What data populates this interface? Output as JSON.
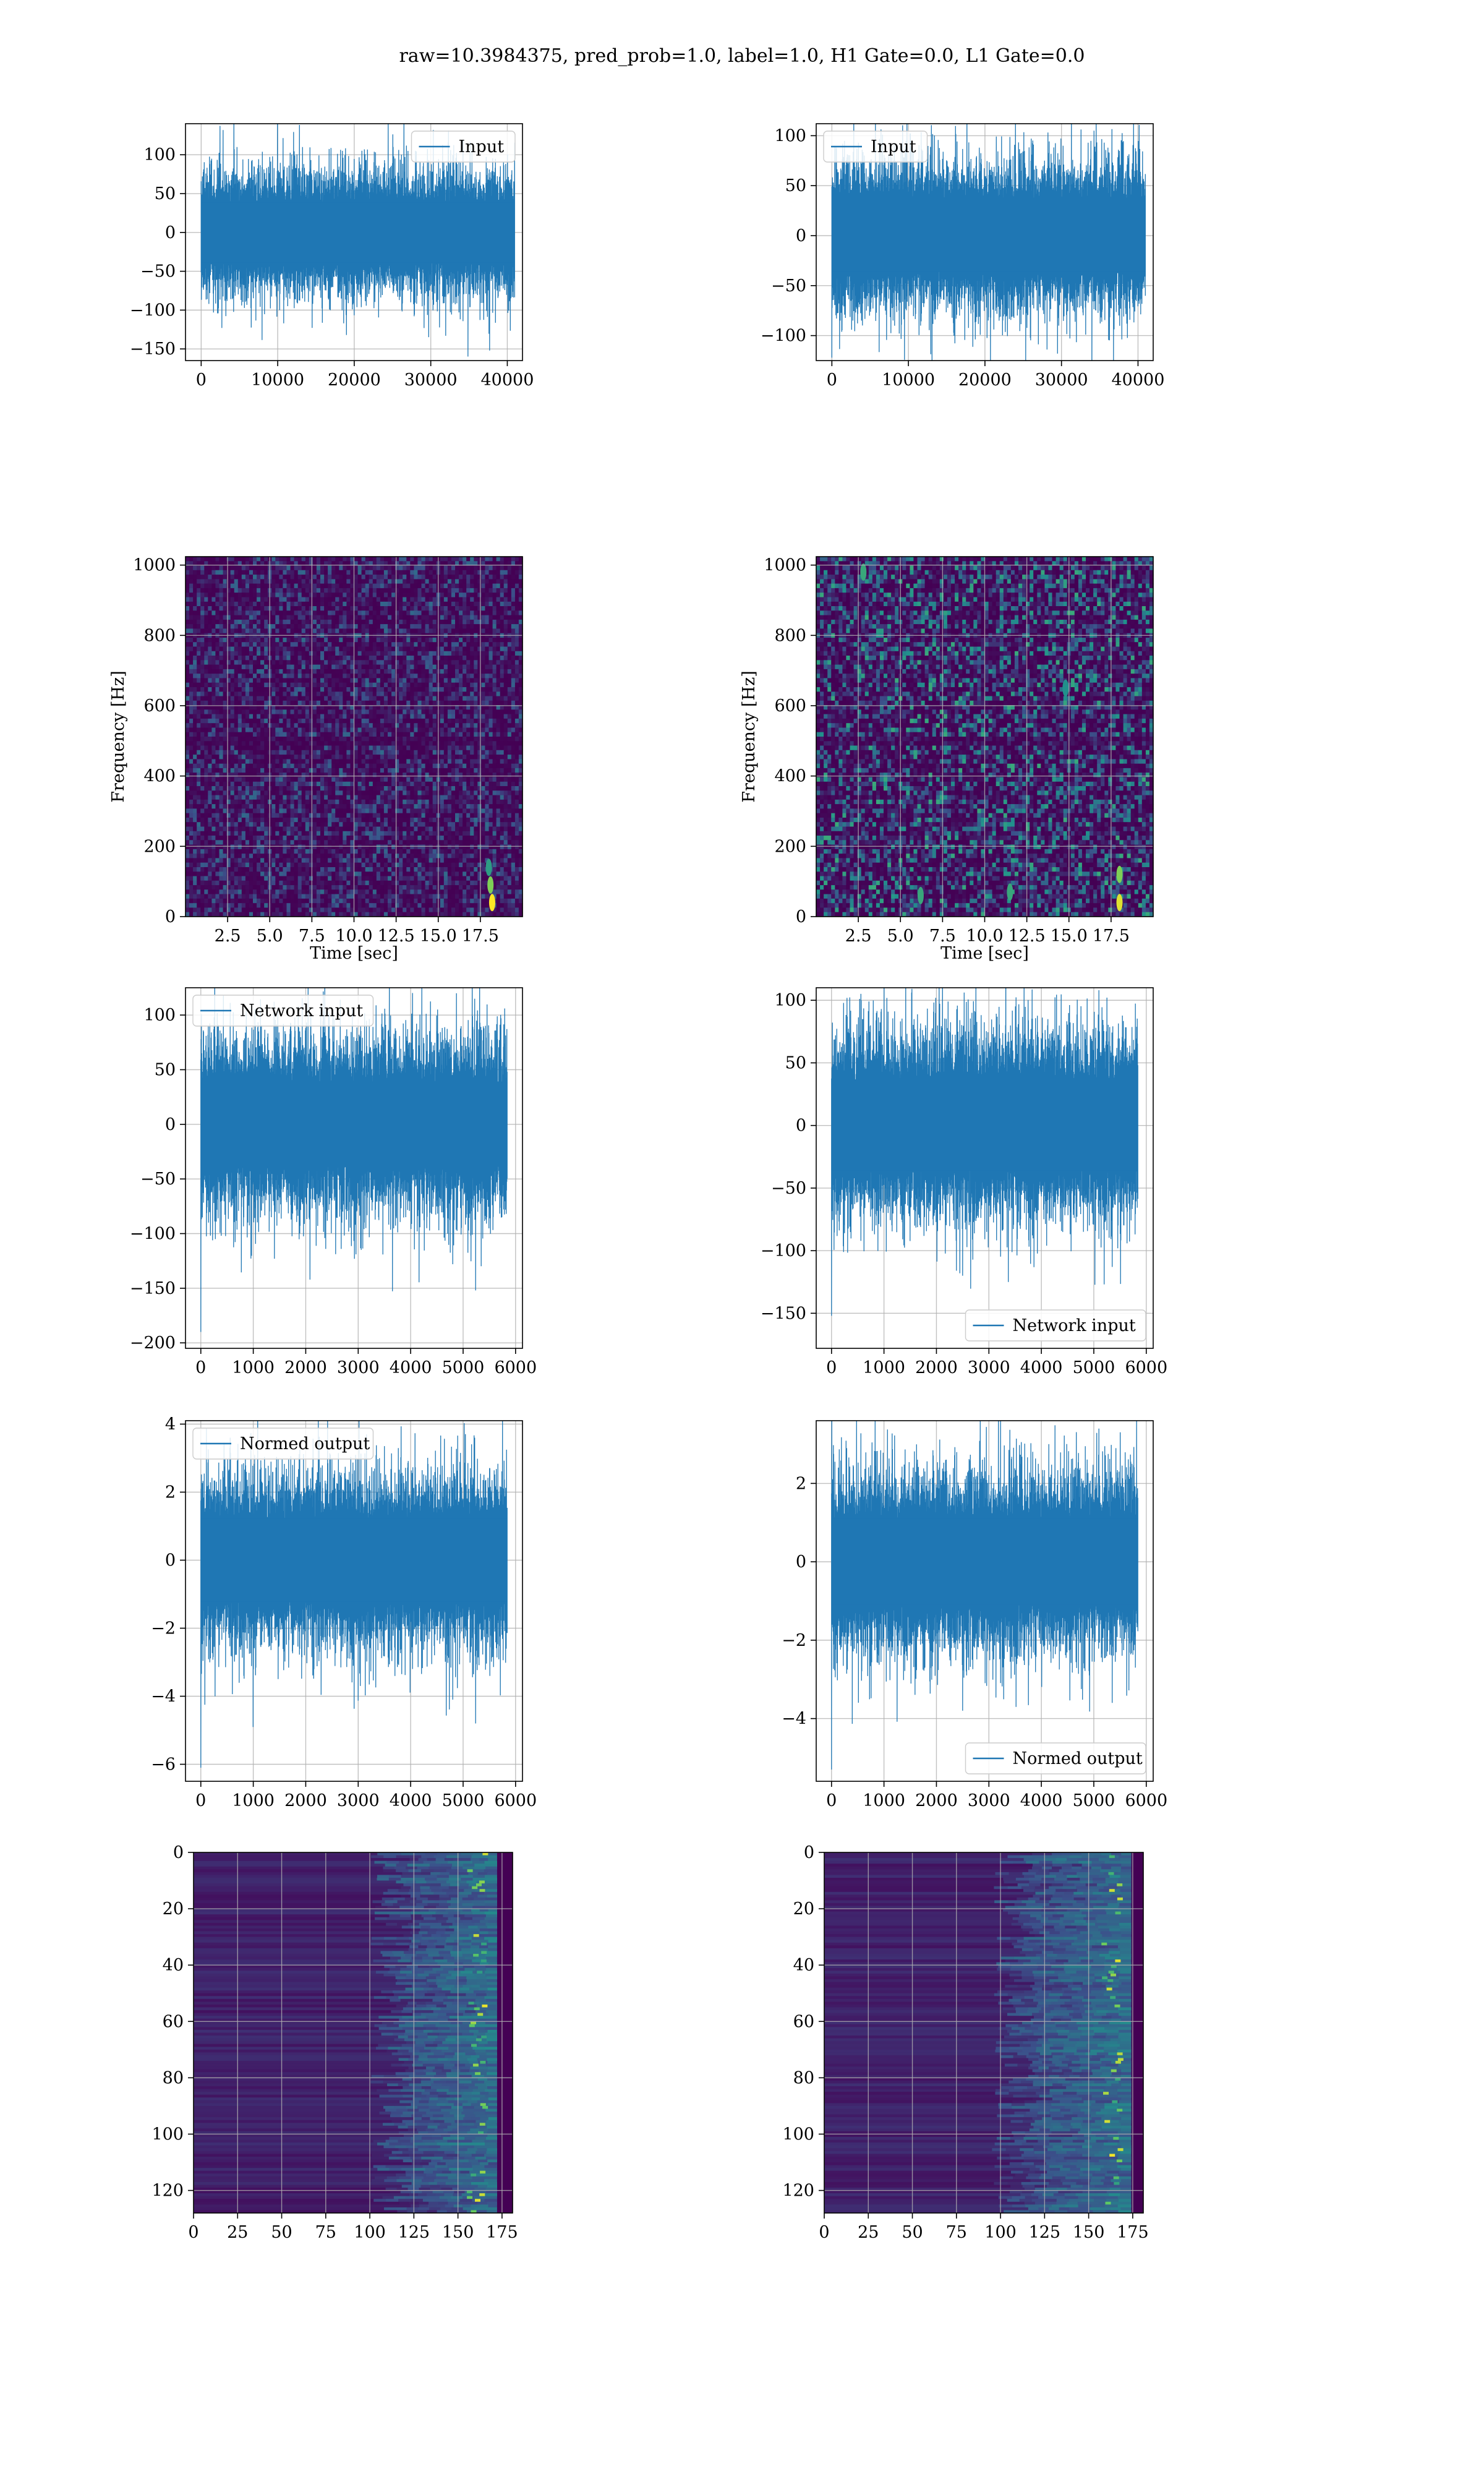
{
  "figure": {
    "title": "raw=10.3984375, pred_prob=1.0, label=1.0, H1 Gate=0.0, L1 Gate=0.0"
  },
  "colors": {
    "line": "#1f77b4",
    "grid": "#b0b0b0",
    "spine": "#000000",
    "viridis_low": "#440154",
    "viridis_mid": "#21918c",
    "viridis_high": "#fde725"
  },
  "chart_data": [
    {
      "id": "r1-left",
      "type": "line",
      "legend": "Input",
      "legend_loc": "upper right",
      "xlim": [
        -2048,
        41984
      ],
      "ylim": [
        -165,
        140
      ],
      "xticks": [
        0,
        10000,
        20000,
        30000,
        40000
      ],
      "yticks": [
        -150,
        -100,
        -50,
        0,
        50,
        100
      ],
      "series": [
        {
          "name": "Input",
          "x_range": [
            0,
            40960
          ],
          "n_points": 40960,
          "envelope": [
            -70,
            70
          ],
          "spikes": [
            [
              37700,
              -152
            ],
            [
              4700,
              110
            ],
            [
              2700,
              -123
            ],
            [
              19000,
              -132
            ]
          ]
        }
      ],
      "grid": true
    },
    {
      "id": "r1-right",
      "type": "line",
      "legend": "Input",
      "legend_loc": "upper left",
      "xlim": [
        -2048,
        41984
      ],
      "ylim": [
        -125,
        112
      ],
      "xticks": [
        0,
        10000,
        20000,
        30000,
        40000
      ],
      "yticks": [
        -100,
        -50,
        0,
        50,
        100
      ],
      "series": [
        {
          "name": "Input",
          "x_range": [
            0,
            40960
          ],
          "n_points": 40960,
          "envelope": [
            -65,
            65
          ],
          "spikes": [
            [
              0,
              -122
            ],
            [
              24000,
              123
            ],
            [
              29500,
              -118
            ]
          ]
        }
      ],
      "grid": true
    },
    {
      "id": "r2-left",
      "type": "heatmap",
      "xlabel": "Time [sec]",
      "ylabel": "Frequency [Hz]",
      "xlim": [
        0,
        20
      ],
      "ylim": [
        0,
        1024
      ],
      "xticks": [
        2.5,
        5.0,
        7.5,
        10.0,
        12.5,
        15.0,
        17.5
      ],
      "yticks": [
        0,
        200,
        400,
        600,
        800,
        1000
      ],
      "colormap": "viridis",
      "intensity": 0.22,
      "hotspots": [
        [
          18.2,
          40,
          1.0
        ],
        [
          18.1,
          90,
          0.8
        ],
        [
          18.0,
          140,
          0.55
        ]
      ],
      "grid": true
    },
    {
      "id": "r2-right",
      "type": "heatmap",
      "xlabel": "Time [sec]",
      "ylabel": "Frequency [Hz]",
      "xlim": [
        0,
        20
      ],
      "ylim": [
        0,
        1024
      ],
      "xticks": [
        2.5,
        5.0,
        7.5,
        10.0,
        12.5,
        15.0,
        17.5
      ],
      "yticks": [
        0,
        200,
        400,
        600,
        800,
        1000
      ],
      "colormap": "viridis",
      "intensity": 0.38,
      "hotspots": [
        [
          18.0,
          40,
          0.95
        ],
        [
          18.0,
          120,
          0.8
        ],
        [
          6.2,
          60,
          0.6
        ],
        [
          11.5,
          70,
          0.6
        ],
        [
          2.8,
          980,
          0.6
        ],
        [
          14.8,
          650,
          0.5
        ]
      ],
      "grid": true
    },
    {
      "id": "r3-left",
      "type": "line",
      "legend": "Network input",
      "legend_loc": "upper left",
      "xlim": [
        -292,
        6132
      ],
      "ylim": [
        -205,
        125
      ],
      "xticks": [
        0,
        1000,
        2000,
        3000,
        4000,
        5000,
        6000
      ],
      "yticks": [
        -200,
        -150,
        -100,
        -50,
        0,
        50,
        100
      ],
      "series": [
        {
          "name": "Network input",
          "x_range": [
            0,
            5840
          ],
          "n_points": 5840,
          "envelope": [
            -70,
            70
          ],
          "spikes": [
            [
              0,
              -190
            ],
            [
              5240,
              -152
            ],
            [
              5220,
              115
            ],
            [
              4800,
              -128
            ]
          ]
        }
      ],
      "grid": true
    },
    {
      "id": "r3-right",
      "type": "line",
      "legend": "Network input",
      "legend_loc": "lower right",
      "xlim": [
        -292,
        6132
      ],
      "ylim": [
        -178,
        110
      ],
      "xticks": [
        0,
        1000,
        2000,
        3000,
        4000,
        5000,
        6000
      ],
      "yticks": [
        -150,
        -100,
        -50,
        0,
        50,
        100
      ],
      "series": [
        {
          "name": "Network input",
          "x_range": [
            0,
            5840
          ],
          "n_points": 5840,
          "envelope": [
            -65,
            65
          ],
          "spikes": [
            [
              0,
              -152
            ],
            [
              5100,
              108
            ],
            [
              2500,
              -120
            ],
            [
              5350,
              -113
            ]
          ]
        }
      ],
      "grid": true
    },
    {
      "id": "r4-left",
      "type": "line",
      "legend": "Normed output",
      "legend_loc": "upper left",
      "xlim": [
        -292,
        6132
      ],
      "ylim": [
        -6.5,
        4.1
      ],
      "xticks": [
        0,
        1000,
        2000,
        3000,
        4000,
        5000,
        6000
      ],
      "yticks": [
        -6,
        -4,
        -2,
        0,
        2,
        4
      ],
      "series": [
        {
          "name": "Normed output",
          "x_range": [
            0,
            5840
          ],
          "n_points": 5840,
          "envelope": [
            -2.2,
            2.2
          ],
          "spikes": [
            [
              0,
              -6.1
            ],
            [
              5240,
              -4.8
            ],
            [
              5220,
              3.6
            ],
            [
              4800,
              -4.1
            ]
          ]
        }
      ],
      "grid": true
    },
    {
      "id": "r4-right",
      "type": "line",
      "legend": "Normed output",
      "legend_loc": "lower right",
      "xlim": [
        -292,
        6132
      ],
      "ylim": [
        -5.6,
        3.6
      ],
      "xticks": [
        0,
        1000,
        2000,
        3000,
        4000,
        5000,
        6000
      ],
      "yticks": [
        -4,
        -2,
        0,
        2
      ],
      "series": [
        {
          "name": "Normed output",
          "x_range": [
            0,
            5840
          ],
          "n_points": 5840,
          "envelope": [
            -2.0,
            2.0
          ],
          "spikes": [
            [
              0,
              -5.3
            ],
            [
              5100,
              3.4
            ],
            [
              2500,
              -3.8
            ],
            [
              5350,
              -3.6
            ]
          ]
        }
      ],
      "grid": true
    },
    {
      "id": "r5-left",
      "type": "heatmap",
      "xlim": [
        0,
        181
      ],
      "ylim": [
        128,
        0
      ],
      "xticks": [
        0,
        25,
        50,
        75,
        100,
        125,
        150,
        175
      ],
      "yticks": [
        0,
        20,
        40,
        60,
        80,
        100,
        120
      ],
      "colormap": "viridis",
      "rows": 128,
      "cols": 181,
      "band_start": 125,
      "band_peak": 160,
      "grid": true
    },
    {
      "id": "r5-right",
      "type": "heatmap",
      "xlim": [
        0,
        181
      ],
      "ylim": [
        128,
        0
      ],
      "xticks": [
        0,
        25,
        50,
        75,
        100,
        125,
        150,
        175
      ],
      "yticks": [
        0,
        20,
        40,
        60,
        80,
        100,
        120
      ],
      "colormap": "viridis",
      "rows": 128,
      "cols": 181,
      "band_start": 120,
      "band_peak": 162,
      "grid": true
    }
  ]
}
